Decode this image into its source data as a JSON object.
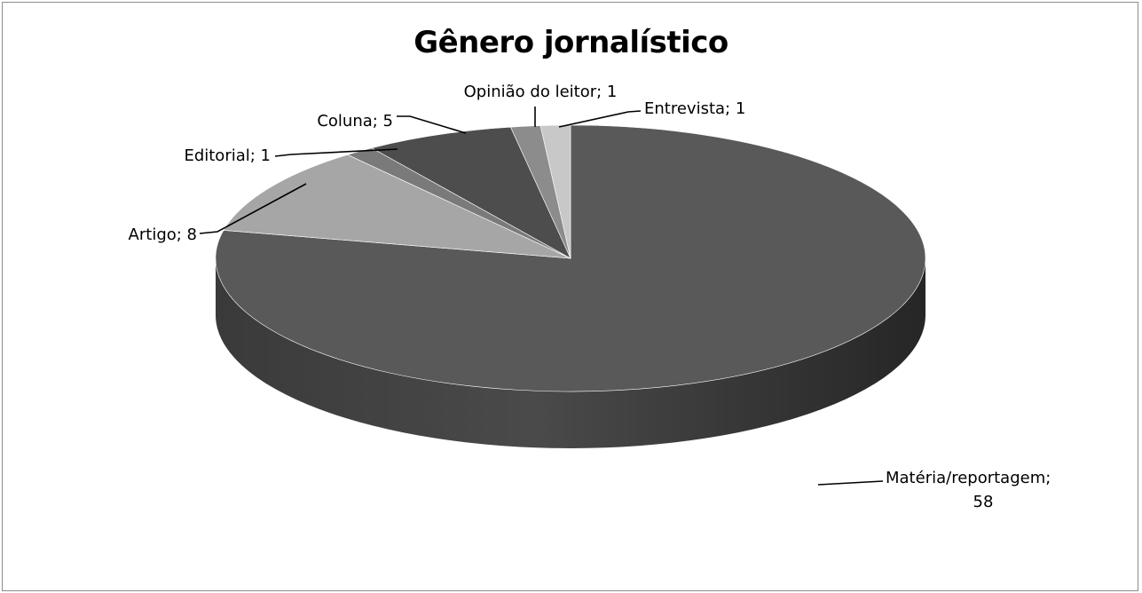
{
  "chart_data": {
    "type": "pie",
    "title": "Gênero jornalístico",
    "style": "3d-exploded-free",
    "slices": [
      {
        "name": "Matéria/reportagem",
        "value": 58,
        "label": "Matéria/reportagem;",
        "label2": "58",
        "color": "#595959"
      },
      {
        "name": "Artigo",
        "value": 8,
        "label": "Artigo; 8",
        "color": "#a6a6a6"
      },
      {
        "name": "Editorial",
        "value": 1,
        "label": "Editorial; 1",
        "color": "#7a7a7a"
      },
      {
        "name": "Coluna",
        "value": 5,
        "label": "Coluna; 5",
        "color": "#4d4d4d"
      },
      {
        "name": "Opinião do leitor",
        "value": 1,
        "label": "Opinião do leitor; 1",
        "color": "#8c8c8c"
      },
      {
        "name": "Entrevista",
        "value": 1,
        "label": "Entrevista; 1",
        "color": "#c8c8c8"
      }
    ]
  }
}
